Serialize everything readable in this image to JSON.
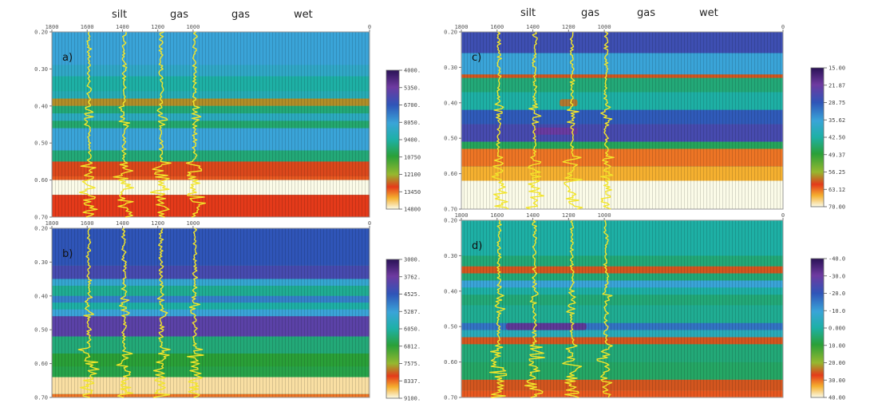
{
  "chart_data": {
    "type": "heatmap",
    "title": "",
    "x_ticks": [
      "1800",
      "1600",
      "1400",
      "1200",
      "1000",
      "0"
    ],
    "y_ticks": [
      "0.20",
      "0.30",
      "0.40",
      "0.50",
      "0.60",
      "0.70"
    ],
    "well_labels": [
      "silt",
      "gas",
      "gas",
      "wet"
    ],
    "panels": [
      {
        "label": "a)",
        "colorbar_ticks": [
          "4000.",
          "5350.",
          "6700.",
          "8050.",
          "9400.",
          "10750",
          "12100",
          "13450",
          "14800"
        ],
        "colorbar_range": [
          4000,
          14800
        ],
        "layers": [
          {
            "top": 0.2,
            "bottom": 0.29,
            "value": 0.38
          },
          {
            "top": 0.29,
            "bottom": 0.32,
            "value": 0.42
          },
          {
            "top": 0.32,
            "bottom": 0.36,
            "value": 0.5
          },
          {
            "top": 0.36,
            "bottom": 0.38,
            "value": 0.46
          },
          {
            "top": 0.38,
            "bottom": 0.4,
            "value": 0.78
          },
          {
            "top": 0.4,
            "bottom": 0.42,
            "value": 0.55
          },
          {
            "top": 0.42,
            "bottom": 0.44,
            "value": 0.44
          },
          {
            "top": 0.44,
            "bottom": 0.46,
            "value": 0.56
          },
          {
            "top": 0.46,
            "bottom": 0.52,
            "value": 0.38
          },
          {
            "top": 0.52,
            "bottom": 0.55,
            "value": 0.55
          },
          {
            "top": 0.55,
            "bottom": 0.59,
            "value": 0.83
          },
          {
            "top": 0.59,
            "bottom": 0.6,
            "value": 0.86
          },
          {
            "top": 0.6,
            "bottom": 0.64,
            "value": 1.0
          },
          {
            "top": 0.64,
            "bottom": 0.7,
            "value": 0.84
          }
        ],
        "anomalies": []
      },
      {
        "label": "b)",
        "colorbar_ticks": [
          "3000.",
          "3762.",
          "4525.",
          "5287.",
          "6050.",
          "6812.",
          "7575.",
          "8337.",
          "9100."
        ],
        "colorbar_range": [
          3000,
          9100
        ],
        "layers": [
          {
            "top": 0.2,
            "bottom": 0.31,
            "value": 0.25
          },
          {
            "top": 0.31,
            "bottom": 0.35,
            "value": 0.2
          },
          {
            "top": 0.35,
            "bottom": 0.37,
            "value": 0.4
          },
          {
            "top": 0.37,
            "bottom": 0.4,
            "value": 0.52
          },
          {
            "top": 0.4,
            "bottom": 0.42,
            "value": 0.32
          },
          {
            "top": 0.42,
            "bottom": 0.44,
            "value": 0.5
          },
          {
            "top": 0.44,
            "bottom": 0.46,
            "value": 0.38
          },
          {
            "top": 0.46,
            "bottom": 0.52,
            "value": 0.16
          },
          {
            "top": 0.52,
            "bottom": 0.57,
            "value": 0.55
          },
          {
            "top": 0.57,
            "bottom": 0.61,
            "value": 0.62
          },
          {
            "top": 0.61,
            "bottom": 0.64,
            "value": 0.6
          },
          {
            "top": 0.64,
            "bottom": 0.69,
            "value": 0.97
          },
          {
            "top": 0.69,
            "bottom": 0.7,
            "value": 0.88
          }
        ],
        "anomalies": []
      },
      {
        "label": "c)",
        "colorbar_ticks": [
          "15.00",
          "21.87",
          "28.75",
          "35.62",
          "42.50",
          "49.37",
          "56.25",
          "63.12",
          "70.00"
        ],
        "colorbar_range": [
          15,
          70
        ],
        "layers": [
          {
            "top": 0.2,
            "bottom": 0.26,
            "value": 0.22
          },
          {
            "top": 0.26,
            "bottom": 0.32,
            "value": 0.38
          },
          {
            "top": 0.32,
            "bottom": 0.33,
            "value": 0.82
          },
          {
            "top": 0.33,
            "bottom": 0.37,
            "value": 0.55
          },
          {
            "top": 0.37,
            "bottom": 0.42,
            "value": 0.5
          },
          {
            "top": 0.42,
            "bottom": 0.46,
            "value": 0.26
          },
          {
            "top": 0.46,
            "bottom": 0.51,
            "value": 0.2
          },
          {
            "top": 0.51,
            "bottom": 0.53,
            "value": 0.58
          },
          {
            "top": 0.53,
            "bottom": 0.58,
            "value": 0.88
          },
          {
            "top": 0.58,
            "bottom": 0.62,
            "value": 0.92
          },
          {
            "top": 0.62,
            "bottom": 0.7,
            "value": 1.0
          }
        ],
        "anomalies": [
          {
            "x_from": 1250,
            "x_to": 1150,
            "top": 0.39,
            "bottom": 0.41,
            "value": 0.8
          },
          {
            "x_from": 1400,
            "x_to": 1150,
            "top": 0.47,
            "bottom": 0.49,
            "value": 0.12
          }
        ]
      },
      {
        "label": "d)",
        "colorbar_ticks": [
          "-40.0",
          "-30.0",
          "-20.0",
          "-10.0",
          "0.000",
          "10.00",
          "20.00",
          "30.00",
          "40.00"
        ],
        "colorbar_range": [
          -40,
          40
        ],
        "layers": [
          {
            "top": 0.2,
            "bottom": 0.3,
            "value": 0.5
          },
          {
            "top": 0.3,
            "bottom": 0.33,
            "value": 0.55
          },
          {
            "top": 0.33,
            "bottom": 0.35,
            "value": 0.82
          },
          {
            "top": 0.35,
            "bottom": 0.37,
            "value": 0.55
          },
          {
            "top": 0.37,
            "bottom": 0.39,
            "value": 0.38
          },
          {
            "top": 0.39,
            "bottom": 0.41,
            "value": 0.5
          },
          {
            "top": 0.41,
            "bottom": 0.44,
            "value": 0.55
          },
          {
            "top": 0.44,
            "bottom": 0.49,
            "value": 0.52
          },
          {
            "top": 0.49,
            "bottom": 0.51,
            "value": 0.3
          },
          {
            "top": 0.51,
            "bottom": 0.53,
            "value": 0.45
          },
          {
            "top": 0.53,
            "bottom": 0.55,
            "value": 0.82
          },
          {
            "top": 0.55,
            "bottom": 0.6,
            "value": 0.55
          },
          {
            "top": 0.6,
            "bottom": 0.65,
            "value": 0.57
          },
          {
            "top": 0.65,
            "bottom": 0.68,
            "value": 0.82
          },
          {
            "top": 0.68,
            "bottom": 0.7,
            "value": 0.86
          }
        ],
        "anomalies": [
          {
            "x_from": 1550,
            "x_to": 1100,
            "top": 0.49,
            "bottom": 0.51,
            "value": 0.1
          }
        ]
      }
    ]
  }
}
